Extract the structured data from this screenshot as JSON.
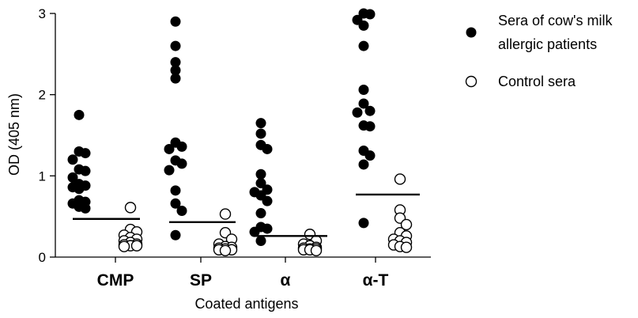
{
  "chart_data": {
    "type": "scatter",
    "title": "",
    "xlabel": "Coated antigens",
    "ylabel": "OD (405 nm)",
    "ylim": [
      0,
      3
    ],
    "yticks": [
      0,
      1,
      2,
      3
    ],
    "categories": [
      "CMP",
      "SP",
      "α",
      "α-T"
    ],
    "grid": false,
    "legend_position": "top-right",
    "series": [
      {
        "name": "Sera of cow's milk allergic patients",
        "marker": "filled-circle",
        "color": "#000000",
        "values": [
          [
            1.75,
            1.3,
            1.28,
            1.2,
            1.08,
            1.06,
            0.98,
            0.9,
            0.88,
            0.86,
            0.84,
            0.7,
            0.68,
            0.66,
            0.62,
            0.6
          ],
          [
            2.9,
            2.6,
            2.4,
            2.3,
            2.2,
            1.41,
            1.36,
            1.33,
            1.19,
            1.15,
            1.07,
            0.82,
            0.66,
            0.57,
            0.27
          ],
          [
            1.65,
            1.52,
            1.38,
            1.33,
            1.02,
            0.91,
            0.83,
            0.8,
            0.76,
            0.69,
            0.54,
            0.37,
            0.35,
            0.31,
            0.2
          ],
          [
            3.0,
            2.99,
            2.92,
            2.85,
            2.6,
            2.06,
            1.89,
            1.8,
            1.78,
            1.62,
            1.61,
            1.31,
            1.25,
            1.14,
            0.42
          ]
        ]
      },
      {
        "name": "Control sera",
        "marker": "open-circle",
        "color": "#000000",
        "values": [
          [
            0.61,
            0.34,
            0.31,
            0.27,
            0.24,
            0.22,
            0.2,
            0.18,
            0.16,
            0.15,
            0.14,
            0.14,
            0.13
          ],
          [
            0.53,
            0.3,
            0.22,
            0.16,
            0.13,
            0.12,
            0.11,
            0.1,
            0.09,
            0.09,
            0.08
          ],
          [
            0.28,
            0.2,
            0.16,
            0.14,
            0.12,
            0.11,
            0.1,
            0.1,
            0.09,
            0.09,
            0.08
          ],
          [
            0.96,
            0.58,
            0.48,
            0.4,
            0.3,
            0.26,
            0.22,
            0.2,
            0.18,
            0.15,
            0.13,
            0.12
          ]
        ]
      }
    ],
    "means": [
      0.47,
      0.43,
      0.26,
      0.77
    ]
  }
}
